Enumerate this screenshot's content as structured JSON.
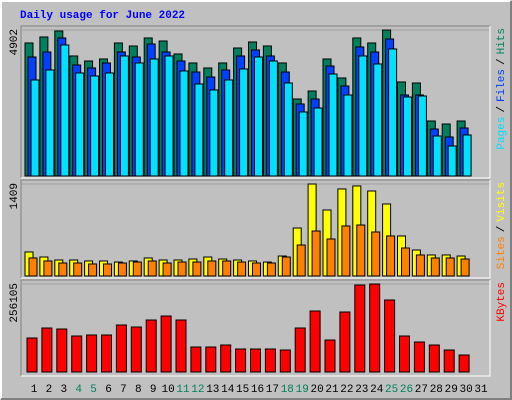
{
  "title": "Daily usage for June 2022",
  "legend_separator": "/",
  "chart_data": [
    {
      "type": "bar",
      "ylim": [
        0,
        4902
      ],
      "yticks": [
        4902
      ],
      "series": [
        {
          "name": "Hits",
          "color": "#00805c",
          "values": [
            4466,
            4668,
            4869,
            4030,
            3862,
            3929,
            4466,
            4365,
            4634,
            4533,
            4097,
            3795,
            3627,
            3795,
            4298,
            4500,
            4365,
            3795,
            2586,
            2854,
            3929,
            3291,
            4634,
            4466,
            4902,
            3157,
            3123,
            1847,
            1746,
            1847,
            null
          ]
        },
        {
          "name": "Files",
          "color": "#0040ff",
          "values": [
            3996,
            4164,
            4634,
            3727,
            3627,
            3795,
            4164,
            3996,
            4433,
            4164,
            3862,
            3492,
            3324,
            3559,
            4030,
            4231,
            4030,
            3492,
            2418,
            2586,
            3694,
            3022,
            4332,
            4164,
            4600,
            2720,
            2720,
            1578,
            1310,
            1612,
            null
          ]
        },
        {
          "name": "Pages",
          "color": "#00e0ff",
          "values": [
            3224,
            3559,
            4399,
            3459,
            3358,
            3459,
            4030,
            3795,
            3929,
            4030,
            3526,
            3089,
            2888,
            3224,
            3593,
            3996,
            3862,
            3123,
            2149,
            2283,
            3425,
            2720,
            4030,
            3761,
            4265,
            2653,
            2686,
            1343,
            1007,
            1377,
            null
          ]
        }
      ]
    },
    {
      "type": "bar",
      "ylim": [
        0,
        1409
      ],
      "yticks": [
        1409
      ],
      "series": [
        {
          "name": "Visits",
          "color": "#ffff00",
          "values": [
            368,
            291,
            245,
            245,
            230,
            230,
            214,
            230,
            276,
            245,
            245,
            260,
            291,
            260,
            245,
            230,
            214,
            306,
            735,
            1409,
            1011,
            1333,
            1379,
            1302,
            1103,
            613,
            398,
            322,
            322,
            306,
            null
          ]
        },
        {
          "name": "Sites",
          "color": "#ff8000",
          "values": [
            276,
            230,
            199,
            199,
            184,
            184,
            199,
            214,
            230,
            199,
            214,
            214,
            230,
            230,
            214,
            199,
            199,
            291,
            475,
            689,
            567,
            766,
            781,
            674,
            613,
            429,
            322,
            276,
            276,
            260,
            null
          ]
        }
      ]
    },
    {
      "type": "bar",
      "ylim": [
        0,
        256105
      ],
      "yticks": [
        256105
      ],
      "categories": [
        "1",
        "2",
        "3",
        "4",
        "5",
        "6",
        "7",
        "8",
        "9",
        "10",
        "11",
        "12",
        "13",
        "14",
        "15",
        "16",
        "17",
        "18",
        "19",
        "20",
        "21",
        "22",
        "23",
        "24",
        "25",
        "26",
        "27",
        "28",
        "29",
        "30",
        "31"
      ],
      "category_colors": [
        "#000000",
        "#000000",
        "#000000",
        "#00805c",
        "#00805c",
        "#000000",
        "#000000",
        "#000000",
        "#000000",
        "#000000",
        "#00805c",
        "#00805c",
        "#000000",
        "#000000",
        "#000000",
        "#000000",
        "#000000",
        "#00805c",
        "#00805c",
        "#000000",
        "#000000",
        "#000000",
        "#000000",
        "#000000",
        "#00805c",
        "#00805c",
        "#000000",
        "#000000",
        "#000000",
        "#000000",
        "#000000"
      ],
      "series": [
        {
          "name": "KBytes",
          "color": "#ff0000",
          "values": [
            98950,
            128050,
            125130,
            104760,
            107670,
            107670,
            136770,
            130950,
            151320,
            162960,
            151320,
            72750,
            72750,
            78570,
            66930,
            66930,
            66930,
            64020,
            128050,
            177510,
            93120,
            174600,
            253170,
            256105,
            209520,
            104760,
            87300,
            78570,
            64020,
            49470,
            null
          ]
        }
      ]
    }
  ]
}
